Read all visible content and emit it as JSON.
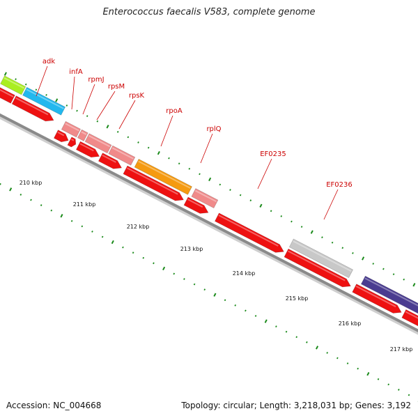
{
  "title": "Enterococcus faecalis V583, complete genome",
  "footer": {
    "accession": "Accession: NC_004668",
    "summary": "Topology: circular; Length: 3,218,031 bp; Genes: 3,192"
  },
  "colors": {
    "backbone": "#8a8a8a",
    "tick": "#1a8a1a",
    "label": "#cc0000",
    "gene_red": "#ee1111",
    "gene_pink": "#f08a8a",
    "gene_orange": "#f59a10",
    "gene_cyan": "#22b8ee",
    "gene_grey": "#c8c8c8",
    "gene_purple": "#4a3c90",
    "gene_lime": "#aaee22"
  },
  "gene_labels": [
    "adk",
    "infA",
    "rpmJ",
    "rpsM",
    "rpsK",
    "rpoA",
    "rplQ",
    "EF0235",
    "EF0236"
  ],
  "kbp_labels": [
    "210 kbp",
    "211 kbp",
    "212 kbp",
    "213 kbp",
    "214 kbp",
    "215 kbp",
    "216 kbp",
    "217 kbp"
  ]
}
